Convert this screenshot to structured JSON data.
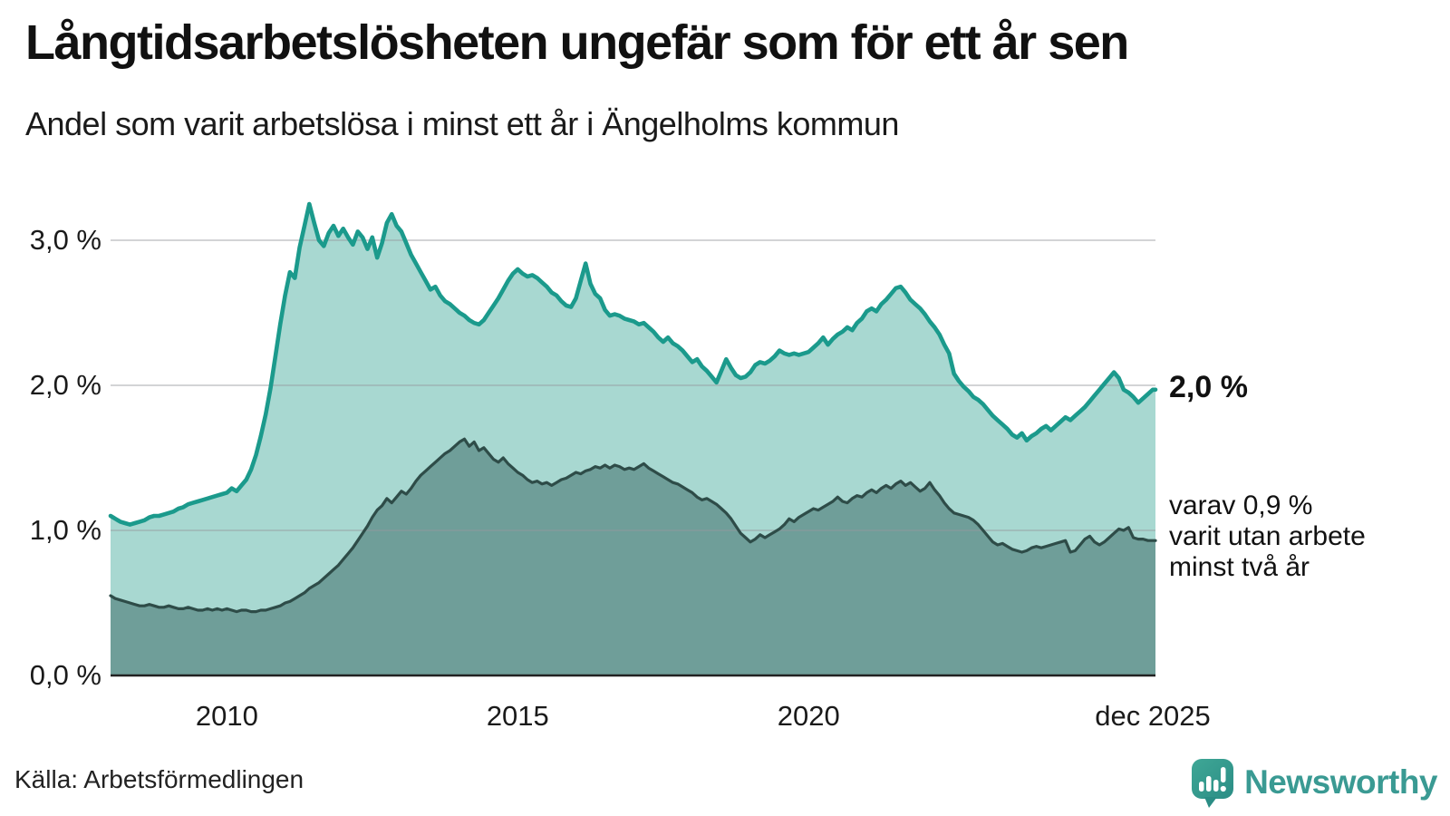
{
  "title": "Långtidsarbetslösheten ungefär som för ett år sen",
  "subtitle": "Andel som varit arbetslösa i minst ett år i Ängelholms kommun",
  "source": "Källa: Arbetsförmedlingen",
  "logo": {
    "text": "Newsworthy"
  },
  "annotations": {
    "end_value_label": "2,0 %",
    "side_note_lines": [
      "varav 0,9 %",
      "varit utan arbete",
      "minst två år"
    ]
  },
  "colors": {
    "accent_line": "#1b9a8c",
    "area_primary": "#a8d8d1",
    "area_secondary": "#6f9e99",
    "secondary_line": "#2e4c48",
    "gridline": "rgba(150,153,158,0.42)",
    "axis": "#222222",
    "logo_teal": "#3a9a93"
  },
  "chart_data": {
    "type": "area",
    "title": "Långtidsarbetslösheten ungefär som för ett år sen",
    "subtitle": "Andel som varit arbetslösa i minst ett år i Ängelholms kommun",
    "unit": "%",
    "frequency": "monthly",
    "x_start": "jan 2008",
    "x_end": "dec 2025",
    "ylim": [
      0,
      3.45
    ],
    "grid": true,
    "y_axis": {
      "ticks": [
        {
          "value": 0,
          "label": "0,0 %"
        },
        {
          "value": 1,
          "label": "1,0 %"
        },
        {
          "value": 2,
          "label": "2,0 %"
        },
        {
          "value": 3,
          "label": "3,0 %"
        }
      ]
    },
    "x_axis": {
      "ticks": [
        {
          "month_index": 24,
          "label": "2010"
        },
        {
          "month_index": 84,
          "label": "2015"
        },
        {
          "month_index": 144,
          "label": "2020"
        },
        {
          "month_index": 215,
          "label": "dec 2025"
        }
      ]
    },
    "series": [
      {
        "name": "Andel som varit arbetslösa i minst ett år",
        "end_label": "2,0 %",
        "values": [
          1.1,
          1.08,
          1.06,
          1.05,
          1.04,
          1.05,
          1.06,
          1.07,
          1.09,
          1.1,
          1.1,
          1.11,
          1.12,
          1.13,
          1.15,
          1.16,
          1.18,
          1.19,
          1.2,
          1.21,
          1.22,
          1.23,
          1.24,
          1.25,
          1.26,
          1.29,
          1.27,
          1.31,
          1.35,
          1.42,
          1.52,
          1.65,
          1.8,
          1.98,
          2.2,
          2.42,
          2.62,
          2.78,
          2.74,
          2.95,
          3.1,
          3.25,
          3.12,
          3.0,
          2.96,
          3.05,
          3.1,
          3.03,
          3.08,
          3.02,
          2.97,
          3.06,
          3.02,
          2.94,
          3.02,
          2.88,
          2.98,
          3.12,
          3.18,
          3.1,
          3.06,
          2.98,
          2.9,
          2.84,
          2.78,
          2.72,
          2.66,
          2.68,
          2.62,
          2.58,
          2.56,
          2.53,
          2.5,
          2.48,
          2.45,
          2.43,
          2.42,
          2.45,
          2.5,
          2.55,
          2.6,
          2.66,
          2.72,
          2.77,
          2.8,
          2.77,
          2.75,
          2.76,
          2.74,
          2.71,
          2.68,
          2.64,
          2.62,
          2.58,
          2.55,
          2.54,
          2.6,
          2.72,
          2.84,
          2.7,
          2.63,
          2.6,
          2.52,
          2.48,
          2.49,
          2.48,
          2.46,
          2.45,
          2.44,
          2.42,
          2.43,
          2.4,
          2.37,
          2.33,
          2.3,
          2.33,
          2.29,
          2.27,
          2.24,
          2.2,
          2.16,
          2.18,
          2.13,
          2.1,
          2.06,
          2.02,
          2.1,
          2.18,
          2.12,
          2.07,
          2.05,
          2.06,
          2.09,
          2.14,
          2.16,
          2.15,
          2.17,
          2.2,
          2.24,
          2.22,
          2.21,
          2.22,
          2.21,
          2.22,
          2.23,
          2.26,
          2.29,
          2.33,
          2.28,
          2.32,
          2.35,
          2.37,
          2.4,
          2.38,
          2.43,
          2.46,
          2.51,
          2.53,
          2.51,
          2.56,
          2.59,
          2.63,
          2.67,
          2.68,
          2.64,
          2.59,
          2.56,
          2.53,
          2.49,
          2.44,
          2.4,
          2.35,
          2.28,
          2.22,
          2.08,
          2.03,
          1.99,
          1.96,
          1.92,
          1.9,
          1.87,
          1.83,
          1.79,
          1.76,
          1.73,
          1.7,
          1.66,
          1.64,
          1.67,
          1.62,
          1.65,
          1.67,
          1.7,
          1.72,
          1.69,
          1.72,
          1.75,
          1.78,
          1.76,
          1.79,
          1.82,
          1.85,
          1.89,
          1.93,
          1.97,
          2.01,
          2.05,
          2.09,
          2.05,
          1.97,
          1.95,
          1.92,
          1.88,
          1.91,
          1.94,
          1.97
        ]
      },
      {
        "name": "varav utan arbete minst två år",
        "end_label": "varav 0,9 %",
        "values": [
          0.55,
          0.53,
          0.52,
          0.51,
          0.5,
          0.49,
          0.48,
          0.48,
          0.49,
          0.48,
          0.47,
          0.47,
          0.48,
          0.47,
          0.46,
          0.46,
          0.47,
          0.46,
          0.45,
          0.45,
          0.46,
          0.45,
          0.46,
          0.45,
          0.46,
          0.45,
          0.44,
          0.45,
          0.45,
          0.44,
          0.44,
          0.45,
          0.45,
          0.46,
          0.47,
          0.48,
          0.5,
          0.51,
          0.53,
          0.55,
          0.57,
          0.6,
          0.62,
          0.64,
          0.67,
          0.7,
          0.73,
          0.76,
          0.8,
          0.84,
          0.88,
          0.93,
          0.98,
          1.03,
          1.09,
          1.14,
          1.17,
          1.22,
          1.19,
          1.23,
          1.27,
          1.25,
          1.29,
          1.34,
          1.38,
          1.41,
          1.44,
          1.47,
          1.5,
          1.53,
          1.55,
          1.58,
          1.61,
          1.63,
          1.58,
          1.61,
          1.55,
          1.57,
          1.53,
          1.49,
          1.47,
          1.5,
          1.46,
          1.43,
          1.4,
          1.38,
          1.35,
          1.33,
          1.34,
          1.32,
          1.33,
          1.31,
          1.33,
          1.35,
          1.36,
          1.38,
          1.4,
          1.39,
          1.41,
          1.42,
          1.44,
          1.43,
          1.45,
          1.43,
          1.45,
          1.44,
          1.42,
          1.43,
          1.42,
          1.44,
          1.46,
          1.43,
          1.41,
          1.39,
          1.37,
          1.35,
          1.33,
          1.32,
          1.3,
          1.28,
          1.26,
          1.23,
          1.21,
          1.22,
          1.2,
          1.18,
          1.15,
          1.12,
          1.08,
          1.03,
          0.98,
          0.95,
          0.92,
          0.94,
          0.97,
          0.95,
          0.97,
          0.99,
          1.01,
          1.04,
          1.08,
          1.06,
          1.09,
          1.11,
          1.13,
          1.15,
          1.14,
          1.16,
          1.18,
          1.2,
          1.23,
          1.2,
          1.19,
          1.22,
          1.24,
          1.23,
          1.26,
          1.28,
          1.26,
          1.29,
          1.31,
          1.29,
          1.32,
          1.34,
          1.31,
          1.33,
          1.3,
          1.27,
          1.29,
          1.33,
          1.28,
          1.24,
          1.19,
          1.15,
          1.12,
          1.11,
          1.1,
          1.09,
          1.07,
          1.04,
          1.0,
          0.96,
          0.92,
          0.9,
          0.91,
          0.89,
          0.87,
          0.86,
          0.85,
          0.86,
          0.88,
          0.89,
          0.88,
          0.89,
          0.9,
          0.91,
          0.92,
          0.93,
          0.85,
          0.86,
          0.9,
          0.94,
          0.96,
          0.92,
          0.9,
          0.92,
          0.95,
          0.98,
          1.01,
          1.0,
          1.02,
          0.95,
          0.94,
          0.94,
          0.93,
          0.93
        ]
      }
    ]
  }
}
